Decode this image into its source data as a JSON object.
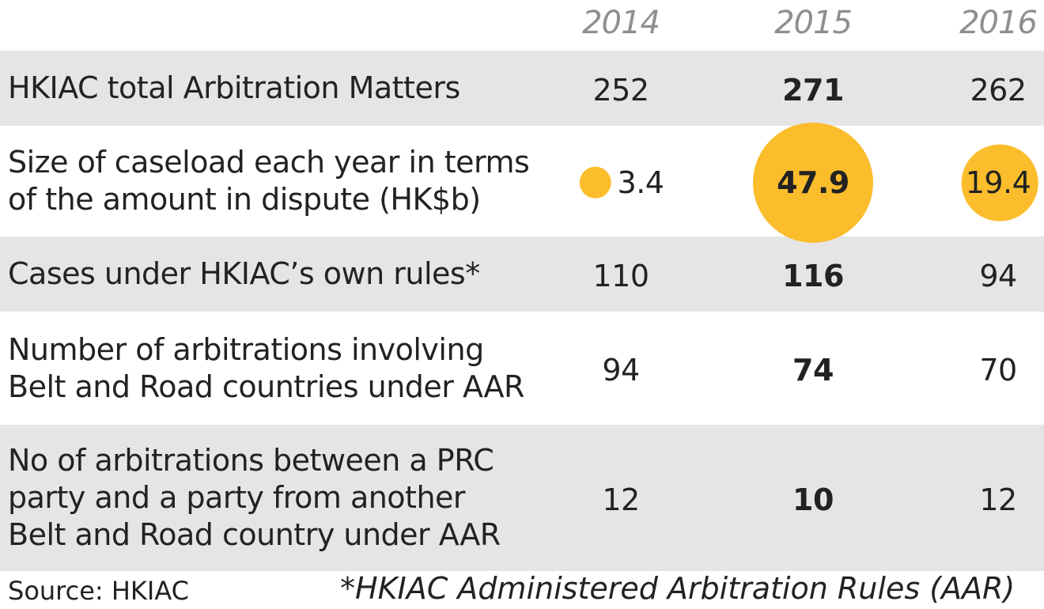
{
  "chart_data": {
    "type": "table",
    "columns": [
      "2014",
      "2015",
      "2016"
    ],
    "rows": [
      {
        "label": "HKIAC total Arbitration Matters",
        "values": [
          "252",
          "271",
          "262"
        ]
      },
      {
        "label": "Size of caseload each year in terms\nof the amount in dispute (HK$b)",
        "values": [
          "3.4",
          "47.9",
          "19.4"
        ]
      },
      {
        "label": "Cases under HKIAC’s own rules*",
        "values": [
          "110",
          "116",
          "94"
        ]
      },
      {
        "label": "Number of arbitrations involving\nBelt and Road countries under AAR",
        "values": [
          "94",
          "74",
          "70"
        ]
      },
      {
        "label": "No of arbitrations between a PRC\nparty and a party from another\nBelt and Road country under AAR",
        "values": [
          "12",
          "10",
          "12"
        ]
      }
    ],
    "highlight_column": "2015",
    "bubble_row": 1
  },
  "footer": {
    "source": "Source: HKIAC",
    "note": "*HKIAC Administered Arbitration Rules (AAR)"
  },
  "colors": {
    "bubble": "#fbbd2c",
    "row_shade": "#e5e5e5",
    "year_text": "#8f8f8f"
  }
}
